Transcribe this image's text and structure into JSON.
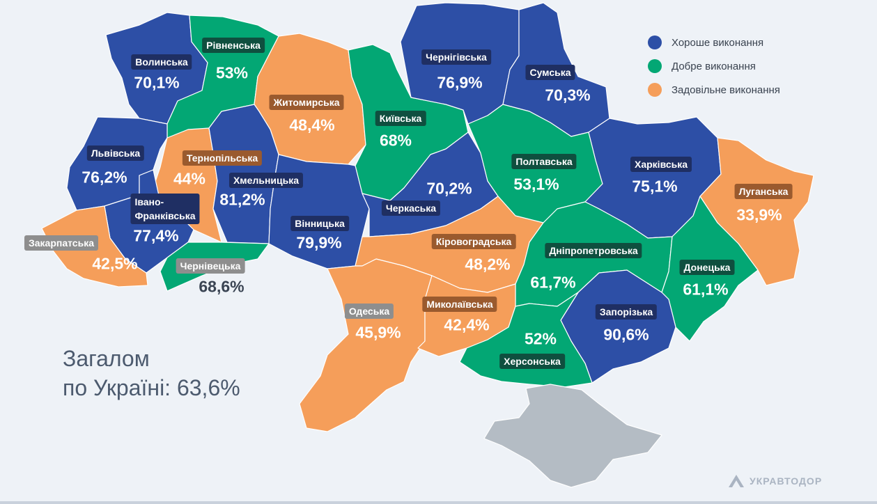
{
  "colors": {
    "good": "#2d4fa6",
    "fine": "#03a774",
    "satisfactory": "#f59e5a",
    "crimea": "#b4bcc4",
    "label_good": "#1f2f63",
    "label_fine": "#0f4f3f",
    "label_satisfactory": "#9a5a2e",
    "label_neutral": "#8e8e8e"
  },
  "legend": [
    {
      "key": "good",
      "label": "Хороше виконання"
    },
    {
      "key": "fine",
      "label": "Добре виконання"
    },
    {
      "key": "satisfactory",
      "label": "Задовільне виконання"
    }
  ],
  "total": {
    "line1": "Загалом",
    "line2": "по Україні: 63,6%"
  },
  "brand": "УКРАВТОДОР",
  "regions": [
    {
      "name": "Волинська",
      "value": "70,1%",
      "category": "good"
    },
    {
      "name": "Рівненська",
      "value": "53%",
      "category": "fine"
    },
    {
      "name": "Житомирська",
      "value": "48,4%",
      "category": "satisfactory"
    },
    {
      "name": "Київська",
      "value": "68%",
      "category": "fine"
    },
    {
      "name": "Чернігівська",
      "value": "76,9%",
      "category": "good"
    },
    {
      "name": "Сумська",
      "value": "70,3%",
      "category": "good"
    },
    {
      "name": "Львівська",
      "value": "76,2%",
      "category": "good"
    },
    {
      "name": "Тернопільська",
      "value": "44%",
      "category": "satisfactory"
    },
    {
      "name": "Хмельницька",
      "value": "81,2%",
      "category": "good"
    },
    {
      "name": "Івано-\nФранківська",
      "value": "77,4%",
      "category": "good"
    },
    {
      "name": "Закарпатська",
      "value": "42,5%",
      "category": "satisfactory"
    },
    {
      "name": "Чернівецька",
      "value": "68,6%",
      "category": "fine"
    },
    {
      "name": "Вінницька",
      "value": "79,9%",
      "category": "good"
    },
    {
      "name": "Черкаська",
      "value": "70,2%",
      "category": "good"
    },
    {
      "name": "Полтавська",
      "value": "53,1%",
      "category": "fine"
    },
    {
      "name": "Харківська",
      "value": "75,1%",
      "category": "good"
    },
    {
      "name": "Луганська",
      "value": "33,9%",
      "category": "satisfactory"
    },
    {
      "name": "Кіровоградська",
      "value": "48,2%",
      "category": "satisfactory"
    },
    {
      "name": "Дніпропетровська",
      "value": "61,7%",
      "category": "fine"
    },
    {
      "name": "Донецька",
      "value": "61,1%",
      "category": "fine"
    },
    {
      "name": "Одеська",
      "value": "45,9%",
      "category": "satisfactory"
    },
    {
      "name": "Миколаївська",
      "value": "42,4%",
      "category": "satisfactory"
    },
    {
      "name": "Запорізька",
      "value": "90,6%",
      "category": "good"
    },
    {
      "name": "Херсонська",
      "value": "52%",
      "category": "fine"
    }
  ]
}
